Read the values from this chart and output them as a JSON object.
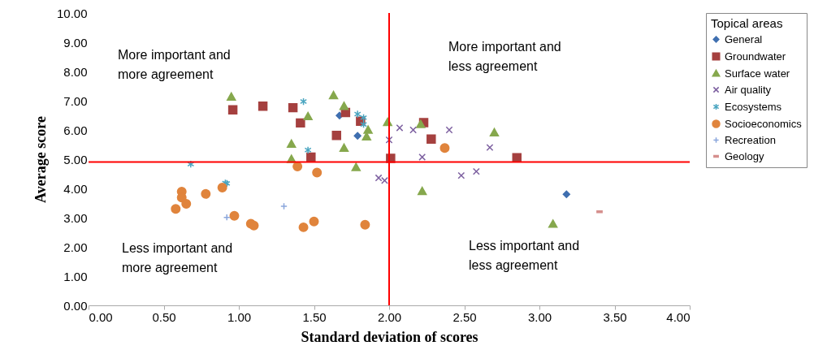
{
  "chart_data": {
    "type": "scatter",
    "xlabel": "Standard deviation of scores",
    "ylabel": "Average score",
    "legend_title": "Topical areas",
    "legend": "right",
    "xlim": [
      0,
      4
    ],
    "xticks": [
      {
        "value": 0,
        "label": "0.00"
      },
      {
        "value": 0.5,
        "label": "0.50"
      },
      {
        "value": 1,
        "label": "1.00"
      },
      {
        "value": 1.5,
        "label": "1.50"
      },
      {
        "value": 2,
        "label": "2.00"
      },
      {
        "value": 2.5,
        "label": "2.50"
      },
      {
        "value": 3,
        "label": "3.00"
      },
      {
        "value": 3.5,
        "label": "3.50"
      },
      {
        "value": 4,
        "label": "4.00"
      }
    ],
    "ylim": [
      0,
      10
    ],
    "yticks": [
      {
        "value": 0,
        "label": "0.00"
      },
      {
        "value": 1,
        "label": "1.00"
      },
      {
        "value": 2,
        "label": "2.00"
      },
      {
        "value": 3,
        "label": "3.00"
      },
      {
        "value": 4,
        "label": "4.00"
      },
      {
        "value": 5,
        "label": "5.00"
      },
      {
        "value": 6,
        "label": "6.00"
      },
      {
        "value": 7,
        "label": "7.00"
      },
      {
        "value": 8,
        "label": "8.00"
      },
      {
        "value": 9,
        "label": "9.00"
      },
      {
        "value": 10,
        "label": "10.00"
      }
    ],
    "ref_lines": [
      {
        "axis": "x",
        "value": 2.0,
        "color": "#ff0000"
      },
      {
        "axis": "y",
        "value": 4.9,
        "color": "#ff0000"
      }
    ],
    "annotations": [
      "More important and\nmore agreement",
      "More important and\nless agreement",
      "Less important and\nmore agreement",
      "Less important and\nless agreement"
    ],
    "series": [
      {
        "name": "General",
        "color": "#3f6fb0",
        "marker": "diamond",
        "x": [
          1.67,
          1.79,
          3.18
        ],
        "values": [
          6.49,
          5.8,
          3.8
        ]
      },
      {
        "name": "Groundwater",
        "color": "#a5403f",
        "marker": "square",
        "x": [
          0.96,
          1.16,
          1.36,
          1.41,
          1.65,
          1.71,
          1.81,
          1.48,
          2.01,
          2.23,
          2.28,
          2.85
        ],
        "values": [
          6.69,
          6.81,
          6.76,
          6.24,
          5.81,
          6.6,
          6.3,
          5.07,
          5.03,
          6.25,
          5.69,
          5.05
        ]
      },
      {
        "name": "Surface water",
        "color": "#86a84d",
        "marker": "triangle",
        "x": [
          0.95,
          1.63,
          1.7,
          1.46,
          1.86,
          1.85,
          1.35,
          1.35,
          1.7,
          1.78,
          1.99,
          2.21,
          2.7,
          2.22,
          3.09
        ],
        "values": [
          7.13,
          7.18,
          6.81,
          6.46,
          6.0,
          5.77,
          5.52,
          5.0,
          5.38,
          4.72,
          6.26,
          6.19,
          5.91,
          3.9,
          2.78
        ]
      },
      {
        "name": "Air quality",
        "color": "#7d60a0",
        "marker": "cross",
        "x": [
          2.07,
          2.16,
          2.0,
          2.4,
          2.67,
          2.22,
          2.48,
          2.58,
          1.93,
          1.97
        ],
        "values": [
          6.07,
          6.0,
          5.66,
          6.0,
          5.4,
          5.07,
          4.44,
          4.58,
          4.36,
          4.27
        ]
      },
      {
        "name": "Ecosystems",
        "color": "#4aa5c0",
        "x": [
          1.43,
          1.79,
          1.83,
          1.83,
          1.46,
          0.68,
          0.91,
          0.92
        ],
        "values": [
          6.97,
          6.54,
          6.42,
          6.19,
          5.31,
          4.83,
          4.18,
          4.17
        ]
      },
      {
        "name": "Socioeconomics",
        "color": "#e0843c",
        "marker": "circle",
        "x": [
          0.62,
          0.62,
          0.65,
          0.58,
          0.78,
          0.89,
          0.97,
          1.08,
          1.1,
          1.43,
          1.5,
          1.84,
          1.39,
          1.52,
          2.37
        ],
        "values": [
          3.89,
          3.69,
          3.47,
          3.3,
          3.81,
          4.03,
          3.06,
          2.79,
          2.73,
          2.67,
          2.87,
          2.76,
          4.75,
          4.54,
          5.38
        ]
      },
      {
        "name": "Recreation",
        "color": "#8aa6dc",
        "marker": "plus",
        "x": [
          0.92,
          1.3
        ],
        "values": [
          3.01,
          3.39
        ]
      },
      {
        "name": "Geology",
        "color": "#d58f8d",
        "x": [
          3.4
        ],
        "values": [
          3.2
        ]
      }
    ]
  }
}
